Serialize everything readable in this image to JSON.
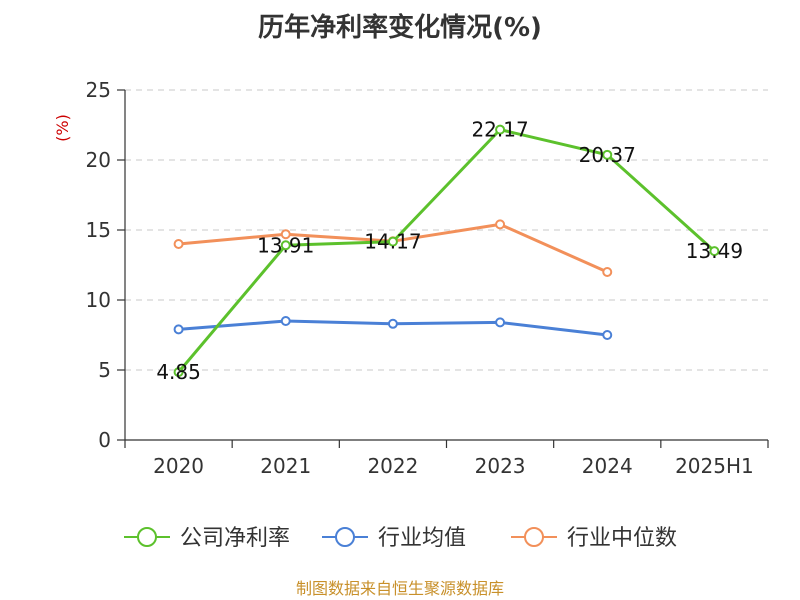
{
  "chart_data": {
    "type": "line",
    "title": "历年净利率变化情况(%)",
    "ylabel": "(%)",
    "xlabel": "",
    "categories": [
      "2020",
      "2021",
      "2022",
      "2023",
      "2024",
      "2025H1"
    ],
    "ylim": [
      0,
      25
    ],
    "yticks": [
      0,
      5,
      10,
      15,
      20,
      25
    ],
    "grid": true,
    "legend_position": "bottom",
    "series": [
      {
        "name": "公司净利率",
        "color": "#5cc12c",
        "values": [
          4.85,
          13.91,
          14.17,
          22.17,
          20.37,
          13.49
        ],
        "labels": [
          "4.85",
          "13.91",
          "14.17",
          "22.17",
          "20.37",
          "13.49"
        ]
      },
      {
        "name": "行业均值",
        "color": "#4a80d6",
        "values": [
          7.9,
          8.5,
          8.3,
          8.4,
          7.5,
          null
        ]
      },
      {
        "name": "行业中位数",
        "color": "#f2905a",
        "values": [
          14.0,
          14.7,
          14.2,
          15.4,
          12.0,
          null
        ]
      }
    ]
  },
  "source": "制图数据来自恒生聚源数据库"
}
